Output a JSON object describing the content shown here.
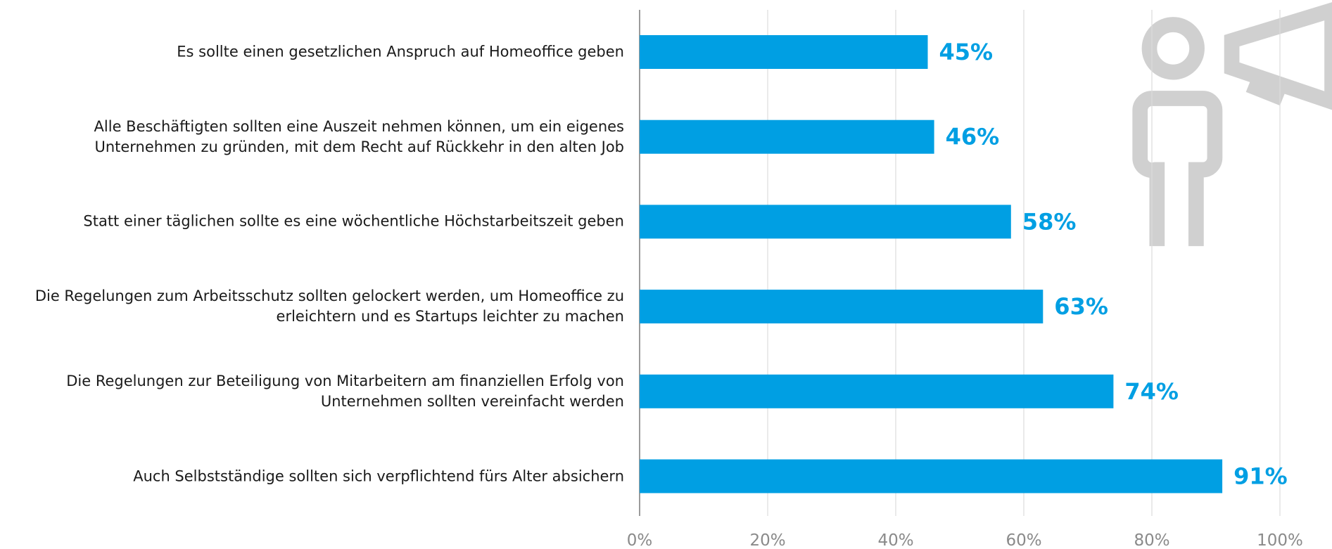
{
  "chart_data": {
    "type": "bar",
    "orientation": "horizontal",
    "categories": [
      "Es sollte einen gesetzlichen Anspruch auf Homeoffice geben",
      "Alle Beschäftigten sollten eine Auszeit nehmen können, um ein eigenes\nUnternehmen zu gründen, mit dem Recht auf Rückkehr in den alten Job",
      "Statt einer täglichen sollte es eine wöchentliche Höchstarbeitszeit geben",
      "Die Regelungen zum Arbeitsschutz sollten gelockert werden, um Homeoffice zu\nerleichtern und es Startups leichter zu machen",
      "Die Regelungen zur Beteiligung von Mitarbeitern am finanziellen Erfolg von\nUnternehmen sollten vereinfacht werden",
      "Auch Selbstständige sollten sich verpflichtend fürs Alter absichern"
    ],
    "values": [
      45,
      46,
      58,
      63,
      74,
      91
    ],
    "value_labels": [
      "45%",
      "46%",
      "58%",
      "63%",
      "74%",
      "91%"
    ],
    "color": "#009fe3",
    "xlim": [
      0,
      100
    ],
    "xticks": [
      {
        "value": 0,
        "label": "0%"
      },
      {
        "value": 20,
        "label": "20%"
      },
      {
        "value": 40,
        "label": "40%"
      },
      {
        "value": 60,
        "label": "60%"
      },
      {
        "value": 80,
        "label": "80%"
      },
      {
        "value": 100,
        "label": "100%"
      }
    ],
    "grid": true
  }
}
